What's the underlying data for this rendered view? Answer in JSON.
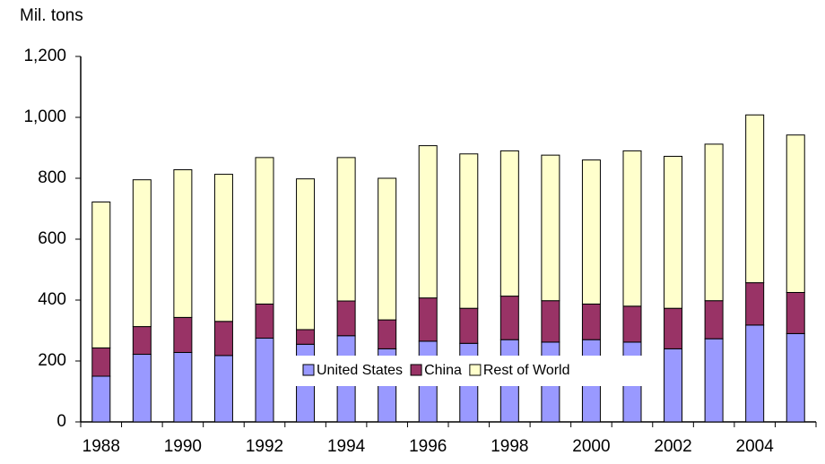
{
  "chart_data": {
    "type": "stacked-bar",
    "ylabel": "Mil. tons",
    "categories": [
      "1988",
      null,
      "1990",
      null,
      "1992",
      null,
      "1994",
      null,
      "1996",
      null,
      "1998",
      null,
      "2000",
      null,
      "2002",
      null,
      "2004",
      null
    ],
    "series": [
      {
        "name": "United States",
        "color": "#9999ff",
        "values": [
          150,
          222,
          228,
          218,
          275,
          255,
          283,
          240,
          265,
          258,
          270,
          262,
          270,
          262,
          240,
          273,
          318,
          290
        ]
      },
      {
        "name": "China",
        "color": "#993366",
        "values": [
          93,
          91,
          115,
          112,
          112,
          48,
          114,
          95,
          142,
          115,
          143,
          136,
          117,
          118,
          133,
          125,
          139,
          135
        ]
      },
      {
        "name": "Rest of World",
        "color": "#ffffcc",
        "values": [
          479,
          482,
          485,
          483,
          481,
          495,
          471,
          465,
          500,
          507,
          477,
          478,
          473,
          510,
          499,
          514,
          551,
          517
        ]
      }
    ],
    "ylim": [
      0,
      1200
    ],
    "yticks": [
      0,
      200,
      400,
      600,
      800,
      {
        "value": 1000,
        "label": "1,000"
      },
      {
        "value": 1200,
        "label": "1,200"
      }
    ]
  }
}
